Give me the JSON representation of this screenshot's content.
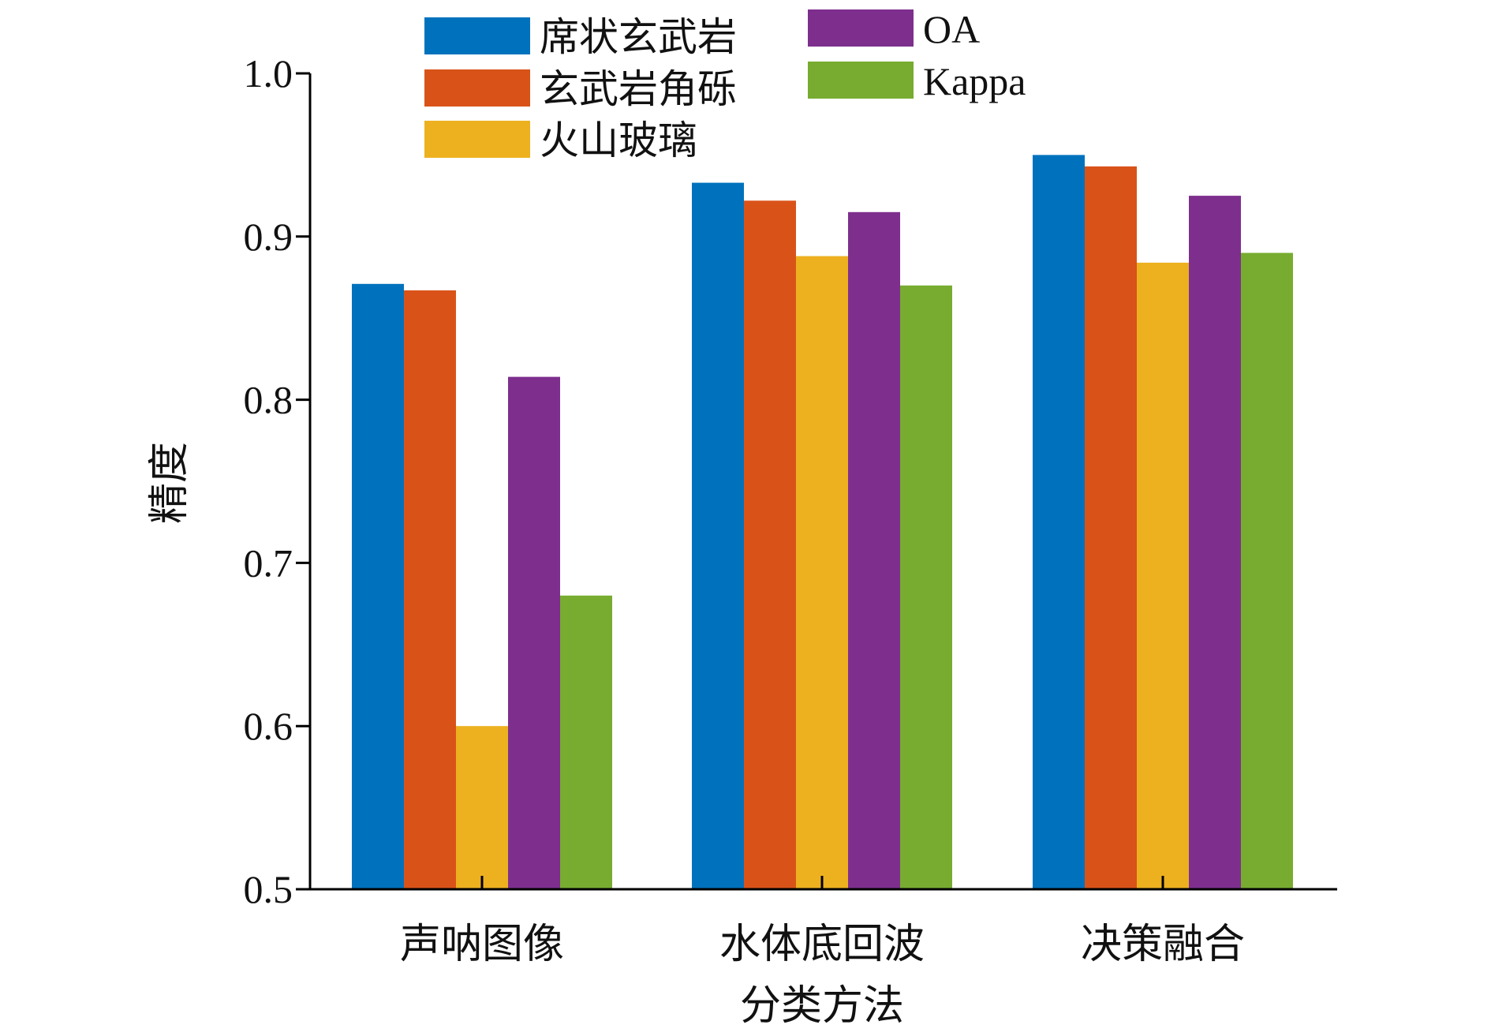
{
  "chart_data": {
    "type": "bar",
    "title": "",
    "xlabel": "分类方法",
    "ylabel": "精度",
    "ylim": [
      0.5,
      1.0
    ],
    "yticks": [
      "0.5",
      "0.6",
      "0.7",
      "0.8",
      "0.9",
      "1.0"
    ],
    "grid": false,
    "legend_position": "top",
    "categories": [
      "声呐图像",
      "水体底回波",
      "决策融合"
    ],
    "series": [
      {
        "name": "席状玄武岩",
        "color": "#0072BD",
        "values": [
          0.871,
          0.933,
          0.95
        ]
      },
      {
        "name": "玄武岩角砾",
        "color": "#D95319",
        "values": [
          0.867,
          0.922,
          0.943
        ]
      },
      {
        "name": "火山玻璃",
        "color": "#EDB120",
        "values": [
          0.6,
          0.888,
          0.884
        ]
      },
      {
        "name": "OA",
        "color": "#7E2F8E",
        "values": [
          0.814,
          0.915,
          0.925
        ]
      },
      {
        "name": "Kappa",
        "color": "#77AC30",
        "values": [
          0.68,
          0.87,
          0.89
        ]
      }
    ]
  }
}
